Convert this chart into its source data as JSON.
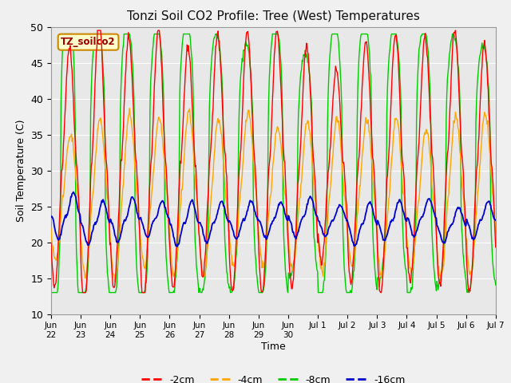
{
  "title": "Tonzi Soil CO2 Profile: Tree (West) Temperatures",
  "xlabel": "Time",
  "ylabel": "Soil Temperature (C)",
  "ylim": [
    10,
    50
  ],
  "series_labels": [
    "-2cm",
    "-4cm",
    "-8cm",
    "-16cm"
  ],
  "series_colors": [
    "#ff0000",
    "#ffa500",
    "#00cc00",
    "#0000cc"
  ],
  "legend_title": "TZ_soilco2",
  "plot_bg_color": "#e8e8e8",
  "fig_bg_color": "#f0f0f0",
  "grid_color": "#ffffff",
  "tick_labels": [
    "Jun\n22",
    "Jun\n23",
    "Jun\n24",
    "Jun\n25",
    "Jun\n26",
    "Jun\n27",
    "Jun\n28",
    "Jun\n29",
    "Jun\n30",
    "Jul 1",
    "Jul 2",
    "Jul 3",
    "Jul 4",
    "Jul 5",
    "Jul 6",
    "Jul 7"
  ],
  "num_days": 15,
  "yticks": [
    10,
    15,
    20,
    25,
    30,
    35,
    40,
    45,
    50
  ]
}
